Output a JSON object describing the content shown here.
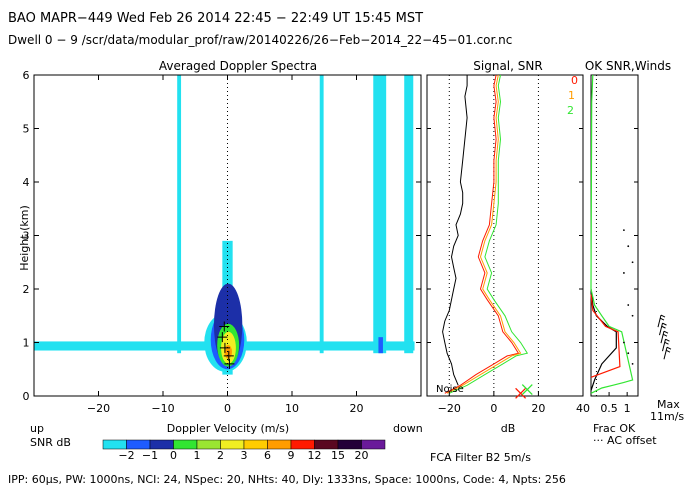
{
  "header": {
    "line1": "BAO  MAPR−449  Wed Feb 26 2014 22:45 − 22:49 UT 15:45 MST",
    "line2": "Dwell  0 −  9   /scr/data/modular_prof/raw/20140226/26−Feb−2014_22−45−01.cor.nc"
  },
  "footer": {
    "params": "IPP:  60μs,  PW: 1000ns,  NCI:  24,  NSpec: 20, NHts: 40,  Dly: 1333ns,  Space: 1000ns,  Code: 4,  Npts: 256",
    "fca": "FCA Filter B2   5m/s"
  },
  "colors": {
    "cyan": "#22e1f0",
    "blue": "#1e5cff",
    "navy": "#1c2fa8",
    "green": "#32e632",
    "yellow": "#f0ee22",
    "orange": "#ff9c00",
    "red": "#ff1a00",
    "black": "#000000"
  },
  "chart_data": [
    {
      "type": "heatmap",
      "title": "Averaged Doppler Spectra",
      "xlabel": "Doppler Velocity (m/s)",
      "ylabel": "Height (km)",
      "xlim": [
        -30,
        30
      ],
      "ylim": [
        0,
        6
      ],
      "xticks": [
        -20,
        -10,
        0,
        10,
        20
      ],
      "yticks": [
        0,
        1,
        2,
        3,
        4,
        5,
        6
      ],
      "x_left_label": "up",
      "x_right_label": "down",
      "colorbar": {
        "label": "SNR dB",
        "ticks": [
          "−2",
          "−1",
          "0",
          "1",
          "2",
          "3",
          "6",
          "9",
          "12",
          "15",
          "20"
        ],
        "colors": [
          "#22e1f0",
          "#1e5cff",
          "#1c2fa8",
          "#32e632",
          "#9ae632",
          "#f0ee22",
          "#ffcc00",
          "#ff9c00",
          "#ff1a00",
          "#5a0820",
          "#240038",
          "#6a1a9a"
        ]
      },
      "strips": [
        {
          "x": [
            -7.8,
            -7.2
          ],
          "y": [
            0.8,
            6.0
          ],
          "level": 0
        },
        {
          "x": [
            -0.8,
            0.8
          ],
          "y": [
            0.4,
            2.9
          ],
          "level": 0
        },
        {
          "x": [
            14.3,
            14.9
          ],
          "y": [
            0.8,
            6.0
          ],
          "level": 0
        },
        {
          "x": [
            22.6,
            24.6
          ],
          "y": [
            0.8,
            6.0
          ],
          "level": 0
        },
        {
          "x": [
            27.4,
            28.8
          ],
          "y": [
            0.8,
            6.0
          ],
          "level": 0
        },
        {
          "x": [
            -30,
            29
          ],
          "y": [
            0.85,
            1.02
          ],
          "level": 0
        },
        {
          "x": [
            23.4,
            24.1
          ],
          "y": [
            0.8,
            1.1
          ],
          "level": 1
        }
      ],
      "core": [
        {
          "x": [
            -3.6,
            3.0
          ],
          "y": [
            0.45,
            1.55
          ],
          "level": 0
        },
        {
          "x": [
            -2.6,
            2.6
          ],
          "y": [
            0.5,
            1.6
          ],
          "level": 1
        },
        {
          "x": [
            -2.1,
            2.3
          ],
          "y": [
            0.55,
            2.1
          ],
          "level": 2
        },
        {
          "x": [
            -1.6,
            1.8
          ],
          "y": [
            0.55,
            1.35
          ],
          "level": 3
        },
        {
          "x": [
            -1.0,
            1.3
          ],
          "y": [
            0.6,
            1.2
          ],
          "level": 5
        },
        {
          "x": [
            -0.5,
            0.7
          ],
          "y": [
            0.7,
            0.95
          ],
          "level": 7
        }
      ],
      "peak_markers": [
        {
          "v": -0.5,
          "h": 1.3
        },
        {
          "v": -0.8,
          "h": 1.1
        },
        {
          "v": -0.4,
          "h": 0.9
        },
        {
          "v": 0.2,
          "h": 0.75
        },
        {
          "v": 0.3,
          "h": 0.6
        }
      ]
    },
    {
      "type": "line",
      "title": "Signal, SNR",
      "xlabel": "dB",
      "xlim": [
        -30,
        40
      ],
      "xticks": [
        -20,
        0,
        20,
        40
      ],
      "ylim": [
        0,
        6
      ],
      "dotted_x": [
        -20,
        0,
        20
      ],
      "noise_label": "Noise",
      "series": [
        {
          "name": "signal",
          "color": "#000000",
          "x": [
            -16,
            -18,
            -19,
            -21,
            -22,
            -23,
            -22,
            -20,
            -19,
            -18,
            -17,
            -18,
            -19,
            -18,
            -16,
            -17,
            -15,
            -14,
            -14,
            -15,
            -14,
            -13,
            -12,
            -13,
            -12,
            -12,
            -11
          ],
          "y": [
            0.2,
            0.4,
            0.6,
            0.8,
            1.0,
            1.2,
            1.4,
            1.6,
            1.8,
            2.0,
            2.2,
            2.4,
            2.6,
            2.8,
            3.0,
            3.2,
            3.4,
            3.6,
            3.8,
            4.0,
            4.4,
            4.8,
            5.2,
            5.6,
            5.8,
            6.0,
            6.0
          ]
        },
        {
          "name": "snr0",
          "color": "#ff1a00",
          "x": [
            -22,
            -15,
            -8,
            0,
            6,
            11,
            8,
            4,
            2,
            -3,
            -6,
            -4,
            -7,
            -5,
            -2,
            -1,
            0,
            0,
            1,
            0,
            1,
            0,
            1
          ],
          "y": [
            0.05,
            0.2,
            0.4,
            0.6,
            0.75,
            0.8,
            1.0,
            1.2,
            1.5,
            1.8,
            2.0,
            2.3,
            2.6,
            2.9,
            3.2,
            3.6,
            4.0,
            4.4,
            4.8,
            5.2,
            5.5,
            5.8,
            6.0
          ]
        },
        {
          "name": "snr1",
          "color": "#ff9c00",
          "x": [
            -21,
            -14,
            -6,
            2,
            8,
            12,
            9,
            5,
            3,
            -2,
            -5,
            -3,
            -6,
            -4,
            -1,
            0,
            1,
            1,
            2,
            1,
            2,
            1,
            2
          ],
          "y": [
            0.05,
            0.2,
            0.4,
            0.6,
            0.75,
            0.8,
            1.0,
            1.2,
            1.5,
            1.8,
            2.0,
            2.3,
            2.6,
            2.9,
            3.2,
            3.6,
            4.0,
            4.4,
            4.8,
            5.2,
            5.5,
            5.8,
            6.0
          ]
        },
        {
          "name": "snr2",
          "color": "#32e632",
          "x": [
            -20,
            -12,
            -4,
            4,
            10,
            15,
            12,
            8,
            5,
            0,
            -3,
            -1,
            -4,
            -2,
            1,
            2,
            2,
            2,
            3,
            2,
            3,
            2,
            3
          ],
          "y": [
            0.05,
            0.2,
            0.4,
            0.6,
            0.75,
            0.8,
            1.0,
            1.2,
            1.5,
            1.8,
            2.0,
            2.3,
            2.6,
            2.9,
            3.2,
            3.6,
            4.0,
            4.4,
            4.8,
            5.2,
            5.5,
            5.8,
            6.0
          ]
        }
      ],
      "markers": [
        {
          "x": 12,
          "y": 0.05,
          "color": "#ff1a00"
        },
        {
          "x": 15,
          "y": 0.12,
          "color": "#32e632"
        }
      ],
      "legend_numbers": [
        "0",
        "1",
        "2"
      ]
    },
    {
      "type": "line",
      "title": "OK SNR,Winds",
      "xlabel": "Frac OK",
      "xlim": [
        0,
        1.3
      ],
      "xticks": [
        "0.5",
        "1"
      ],
      "ylim": [
        0,
        6
      ],
      "offset_label": "··· AC offset",
      "max_label": "Max",
      "wind_label": "11m/s",
      "series": [
        {
          "name": "frac0",
          "color": "#000000",
          "x": [
            0.0,
            0.1,
            0.3,
            0.7,
            0.7,
            0.45,
            0.15,
            0.05,
            0.0
          ],
          "y": [
            0.1,
            0.3,
            0.6,
            0.9,
            1.2,
            1.3,
            1.5,
            1.7,
            2.0
          ]
        },
        {
          "name": "frac1",
          "color": "#ff1a00",
          "x": [
            0.0,
            0.4,
            0.8,
            0.75,
            0.4,
            0.05,
            0.0
          ],
          "y": [
            0.35,
            0.45,
            0.55,
            1.2,
            1.3,
            1.6,
            1.9
          ]
        },
        {
          "name": "frac2",
          "color": "#32e632",
          "x": [
            0.0,
            0.3,
            0.6,
            0.9,
            1.15,
            0.85,
            0.5,
            0.3,
            0.1,
            0.0,
            0.02,
            0.05
          ],
          "y": [
            0.05,
            0.15,
            0.2,
            0.25,
            0.3,
            1.2,
            1.3,
            1.5,
            1.7,
            2.0,
            5.5,
            6.0
          ]
        }
      ],
      "dots_h": [
        0.6,
        0.8,
        1.0,
        1.5,
        1.7,
        2.3,
        2.5,
        2.8,
        3.1
      ],
      "barbs_h": [
        0.8,
        0.95,
        1.1,
        1.25,
        1.4
      ]
    }
  ]
}
